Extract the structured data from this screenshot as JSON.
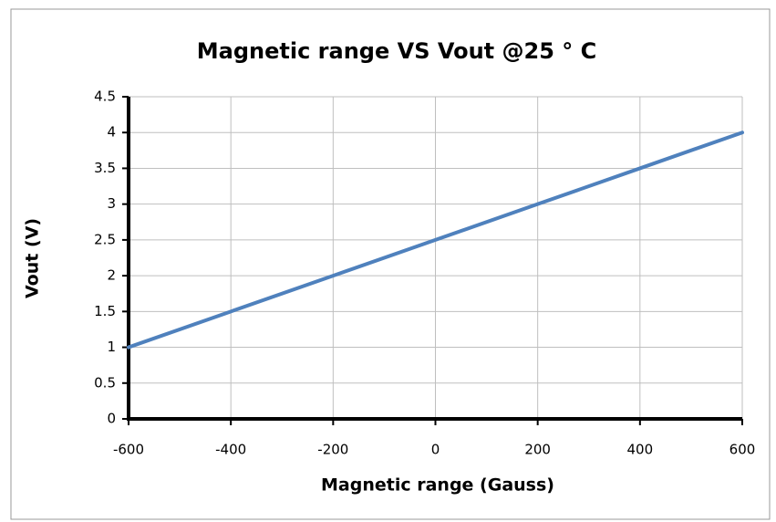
{
  "chart_data": {
    "type": "line",
    "title": "Magnetic range VS Vout @25 ° C",
    "x_label": "Magnetic range (Gauss)",
    "y_label": "Vout (V)",
    "x": [
      -600,
      -400,
      -200,
      0,
      200,
      400,
      600
    ],
    "series": [
      {
        "name": "Vout",
        "color": "#4f81bd",
        "values": [
          1,
          1.5,
          2,
          2.5,
          3,
          3.5,
          4
        ]
      }
    ],
    "xlim": [
      -600,
      600
    ],
    "xticks": [
      -600,
      -400,
      -200,
      0,
      200,
      400,
      600
    ],
    "ylim": [
      0,
      4.5
    ],
    "yticks": [
      0,
      0.5,
      1,
      1.5,
      2,
      2.5,
      3,
      3.5,
      4,
      4.5
    ],
    "grid": true
  }
}
